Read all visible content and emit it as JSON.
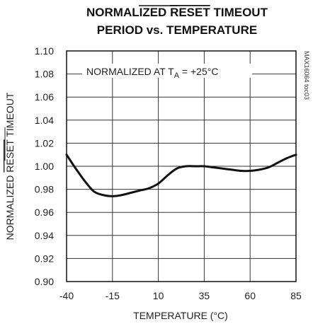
{
  "chart_data": {
    "type": "line",
    "title_line1_pre": "NORMALIZED ",
    "title_line1_over": "RESET",
    "title_line1_post": " TIMEOUT",
    "title_line2": "PERIOD vs. TEMPERATURE",
    "xlabel": "TEMPERATURE (°C)",
    "ylabel_pre": "NORMALIZED ",
    "ylabel_over": "RESET",
    "ylabel_post": " TIMEOUT",
    "annotation_pre": "NORMALIZED AT T",
    "annotation_sub": "A",
    "annotation_post": " = +25°C",
    "figure_code": "MAX16064 toc03",
    "xlim": [
      -40,
      85
    ],
    "ylim": [
      0.9,
      1.1
    ],
    "x_ticks": [
      -40,
      -15,
      10,
      35,
      60,
      85
    ],
    "x_tick_labels": [
      "-40",
      "-15",
      "10",
      "35",
      "60",
      "85"
    ],
    "y_ticks": [
      0.9,
      0.92,
      0.94,
      0.96,
      0.98,
      1.0,
      1.02,
      1.04,
      1.06,
      1.08,
      1.1
    ],
    "y_tick_labels": [
      "0.90",
      "0.92",
      "0.94",
      "0.96",
      "0.98",
      "1.00",
      "1.02",
      "1.04",
      "1.06",
      "1.08",
      "1.10"
    ],
    "grid": true,
    "series": [
      {
        "color": "#111111",
        "x": [
          -40,
          -35,
          -30,
          -25,
          -20,
          -15,
          -10,
          -5,
          0,
          5,
          10,
          15,
          20,
          25,
          30,
          35,
          40,
          45,
          50,
          55,
          60,
          65,
          70,
          75,
          80,
          85
        ],
        "y": [
          1.01,
          0.998,
          0.987,
          0.978,
          0.975,
          0.974,
          0.975,
          0.977,
          0.979,
          0.981,
          0.985,
          0.992,
          0.998,
          1.0,
          1.0,
          1.0,
          0.999,
          0.998,
          0.997,
          0.996,
          0.996,
          0.997,
          0.999,
          1.003,
          1.007,
          1.01
        ]
      }
    ]
  }
}
